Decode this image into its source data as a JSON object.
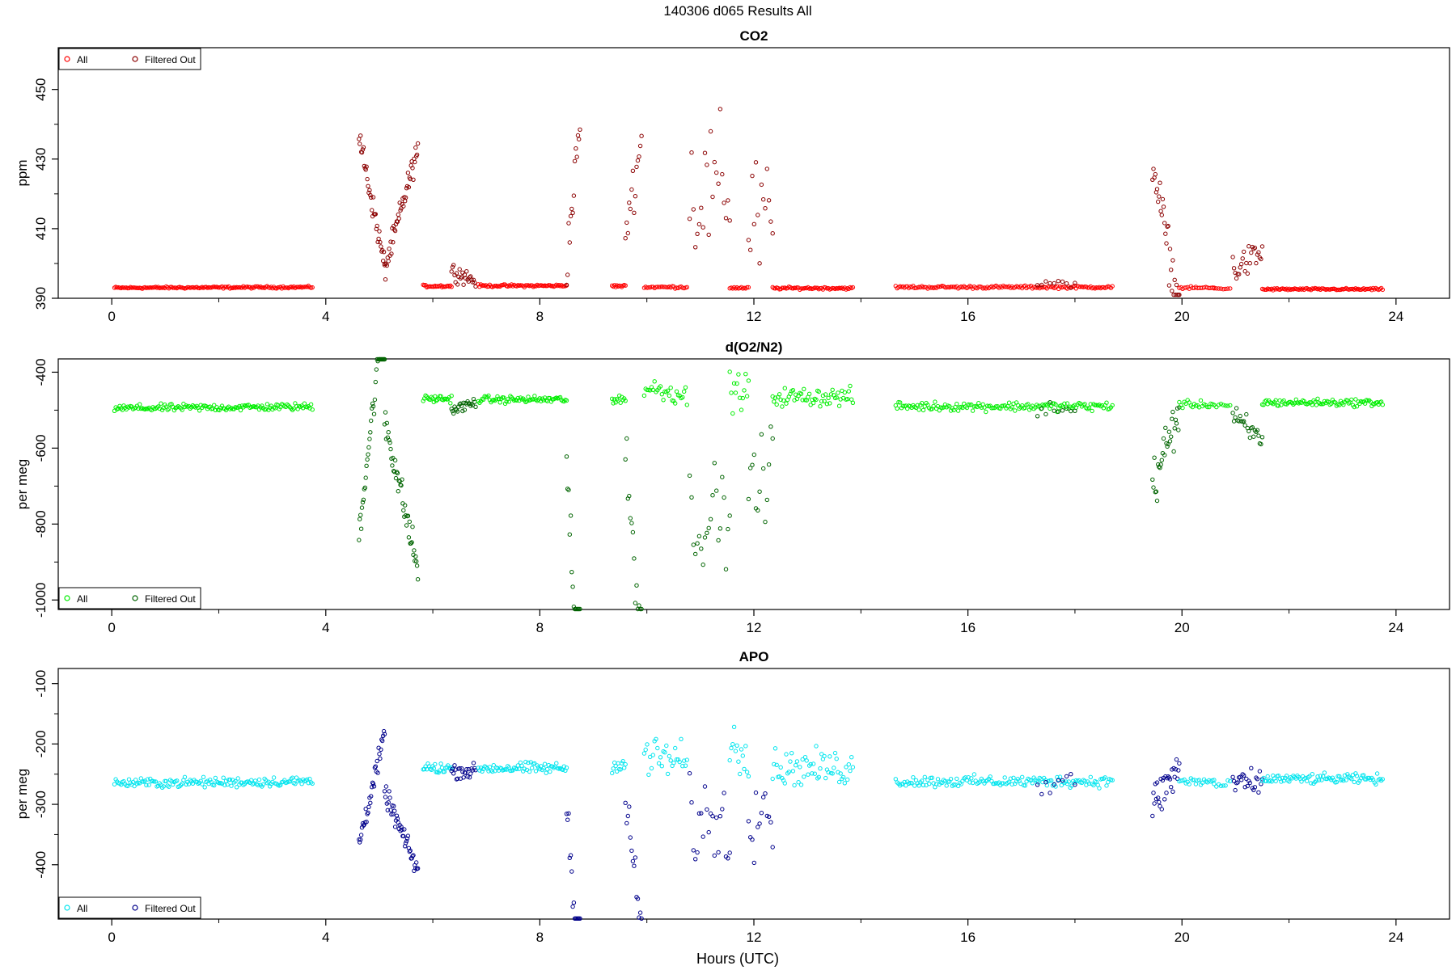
{
  "figure": {
    "title": "140306   d065   Results All",
    "xlabel": "Hours (UTC)"
  },
  "chart_data": [
    {
      "type": "scatter",
      "title": "CO2",
      "ylabel": "ppm",
      "xlim": [
        -1.0,
        25.0
      ],
      "ylim": [
        390,
        462
      ],
      "xticks": [
        0,
        4,
        8,
        12,
        16,
        20,
        24
      ],
      "yticks": [
        390,
        410,
        430,
        450
      ],
      "grid": false,
      "legend_position": "top-left",
      "series": [
        {
          "name": "All",
          "color": "#ff0000",
          "marker": "circle"
        },
        {
          "name": "Filtered Out",
          "color": "#8b0000",
          "marker": "circle"
        }
      ],
      "segments": [
        {
          "x0": 0.05,
          "x1": 3.75,
          "n": 150,
          "base": 393.0,
          "slope": 0.2,
          "noise": 0.25,
          "kind": "baseline",
          "series": 0
        },
        {
          "x0": 4.62,
          "x1": 5.1,
          "n": 35,
          "base": 437,
          "slope": -38,
          "noise": 3,
          "kind": "filtered",
          "series": 1
        },
        {
          "x0": 5.1,
          "x1": 5.72,
          "n": 45,
          "base": 398,
          "slope": 35,
          "noise": 3,
          "kind": "filtered",
          "series": 1
        },
        {
          "x0": 5.82,
          "x1": 6.35,
          "n": 25,
          "base": 393.5,
          "slope": 0,
          "noise": 0.3,
          "kind": "baseline",
          "series": 0
        },
        {
          "x0": 6.35,
          "x1": 6.8,
          "n": 25,
          "base": 398,
          "slope": -3,
          "noise": 2,
          "kind": "filtered",
          "series": 1
        },
        {
          "x0": 6.85,
          "x1": 8.5,
          "n": 70,
          "base": 393.6,
          "slope": 0,
          "noise": 0.3,
          "kind": "baseline",
          "series": 0
        },
        {
          "x0": 8.5,
          "x1": 8.75,
          "n": 14,
          "base": 400,
          "slope": 40,
          "noise": 6,
          "kind": "filtered",
          "series": 1
        },
        {
          "x0": 9.35,
          "x1": 9.6,
          "n": 12,
          "base": 393.5,
          "slope": 0,
          "noise": 0.3,
          "kind": "baseline",
          "series": 0
        },
        {
          "x0": 9.6,
          "x1": 9.9,
          "n": 14,
          "base": 410,
          "slope": 25,
          "noise": 6,
          "kind": "filtered",
          "series": 1
        },
        {
          "x0": 9.95,
          "x1": 10.75,
          "n": 30,
          "base": 393.2,
          "slope": 0,
          "noise": 0.3,
          "kind": "baseline",
          "series": 0
        },
        {
          "x0": 10.8,
          "x1": 11.55,
          "n": 22,
          "base": 420,
          "slope": 0,
          "noise": 18,
          "kind": "filtered",
          "series": 1
        },
        {
          "x0": 11.55,
          "x1": 11.9,
          "n": 14,
          "base": 393,
          "slope": 0,
          "noise": 0.3,
          "kind": "baseline",
          "series": 0
        },
        {
          "x0": 11.9,
          "x1": 12.35,
          "n": 14,
          "base": 412,
          "slope": 0,
          "noise": 16,
          "kind": "filtered",
          "series": 1
        },
        {
          "x0": 12.35,
          "x1": 13.85,
          "n": 60,
          "base": 392.9,
          "slope": 0,
          "noise": 0.3,
          "kind": "baseline",
          "series": 0
        },
        {
          "x0": 14.65,
          "x1": 18.7,
          "n": 150,
          "base": 393.2,
          "slope": 0,
          "noise": 0.35,
          "kind": "baseline",
          "series": 0
        },
        {
          "x0": 17.3,
          "x1": 18.0,
          "n": 10,
          "base": 394,
          "slope": 0,
          "noise": 1,
          "kind": "filtered",
          "series": 1
        },
        {
          "x0": 19.45,
          "x1": 19.95,
          "n": 30,
          "base": 430,
          "slope": -45,
          "noise": 6,
          "kind": "filtered",
          "series": 1
        },
        {
          "x0": 19.95,
          "x1": 20.6,
          "n": 22,
          "base": 393,
          "slope": 0,
          "noise": 0.3,
          "kind": "baseline",
          "series": 0
        },
        {
          "x0": 20.6,
          "x1": 20.9,
          "n": 8,
          "base": 392.8,
          "slope": 0,
          "noise": 0.2,
          "kind": "baseline",
          "series": 0
        },
        {
          "x0": 20.95,
          "x1": 21.5,
          "n": 25,
          "base": 398,
          "slope": 5,
          "noise": 4,
          "kind": "filtered",
          "series": 1
        },
        {
          "x0": 21.5,
          "x1": 23.75,
          "n": 90,
          "base": 392.6,
          "slope": 0,
          "noise": 0.25,
          "kind": "baseline",
          "series": 0
        }
      ]
    },
    {
      "type": "scatter",
      "title": "d(O2/N2)",
      "ylabel": "per meg",
      "xlim": [
        -1.0,
        25.0
      ],
      "ylim": [
        -1025,
        -365
      ],
      "xticks": [
        0,
        4,
        8,
        12,
        16,
        20,
        24
      ],
      "yticks": [
        -1000,
        -800,
        -600,
        -400
      ],
      "grid": false,
      "legend_position": "bottom-left",
      "series": [
        {
          "name": "All",
          "color": "#00ee00",
          "marker": "circle"
        },
        {
          "name": "Filtered Out",
          "color": "#006400",
          "marker": "circle"
        }
      ],
      "segments": [
        {
          "x0": 0.05,
          "x1": 3.75,
          "n": 150,
          "base": -495,
          "slope": 4,
          "noise": 8,
          "kind": "baseline",
          "series": 0
        },
        {
          "x0": 4.62,
          "x1": 5.1,
          "n": 35,
          "base": -820,
          "slope": 600,
          "noise": 40,
          "kind": "filtered",
          "series": 1
        },
        {
          "x0": 5.1,
          "x1": 5.72,
          "n": 45,
          "base": -520,
          "slope": -400,
          "noise": 40,
          "kind": "filtered",
          "series": 1
        },
        {
          "x0": 5.82,
          "x1": 6.35,
          "n": 25,
          "base": -470,
          "slope": 0,
          "noise": 8,
          "kind": "baseline",
          "series": 0
        },
        {
          "x0": 6.35,
          "x1": 6.8,
          "n": 25,
          "base": -500,
          "slope": 20,
          "noise": 12,
          "kind": "filtered",
          "series": 1
        },
        {
          "x0": 6.85,
          "x1": 8.5,
          "n": 70,
          "base": -472,
          "slope": 0,
          "noise": 8,
          "kind": "baseline",
          "series": 0
        },
        {
          "x0": 8.5,
          "x1": 8.75,
          "n": 14,
          "base": -650,
          "slope": -700,
          "noise": 60,
          "kind": "filtered",
          "series": 1
        },
        {
          "x0": 9.35,
          "x1": 9.6,
          "n": 12,
          "base": -470,
          "slope": 0,
          "noise": 10,
          "kind": "baseline",
          "series": 0
        },
        {
          "x0": 9.6,
          "x1": 9.9,
          "n": 14,
          "base": -620,
          "slope": -500,
          "noise": 60,
          "kind": "filtered",
          "series": 1
        },
        {
          "x0": 9.95,
          "x1": 10.75,
          "n": 30,
          "base": -440,
          "slope": -20,
          "noise": 25,
          "kind": "baseline",
          "series": 0
        },
        {
          "x0": 10.8,
          "x1": 11.55,
          "n": 22,
          "base": -780,
          "slope": 0,
          "noise": 120,
          "kind": "filtered",
          "series": 1
        },
        {
          "x0": 11.55,
          "x1": 11.9,
          "n": 14,
          "base": -450,
          "slope": 0,
          "noise": 40,
          "kind": "baseline",
          "series": 0
        },
        {
          "x0": 11.9,
          "x1": 12.35,
          "n": 14,
          "base": -700,
          "slope": 0,
          "noise": 140,
          "kind": "filtered",
          "series": 1
        },
        {
          "x0": 12.35,
          "x1": 13.85,
          "n": 60,
          "base": -465,
          "slope": 0,
          "noise": 20,
          "kind": "baseline",
          "series": 0
        },
        {
          "x0": 14.65,
          "x1": 18.7,
          "n": 150,
          "base": -490,
          "slope": 0,
          "noise": 10,
          "kind": "baseline",
          "series": 0
        },
        {
          "x0": 17.3,
          "x1": 18.0,
          "n": 10,
          "base": -500,
          "slope": 0,
          "noise": 20,
          "kind": "filtered",
          "series": 1
        },
        {
          "x0": 19.45,
          "x1": 19.95,
          "n": 30,
          "base": -700,
          "slope": 200,
          "noise": 60,
          "kind": "filtered",
          "series": 1
        },
        {
          "x0": 19.95,
          "x1": 20.6,
          "n": 22,
          "base": -485,
          "slope": 0,
          "noise": 8,
          "kind": "baseline",
          "series": 0
        },
        {
          "x0": 20.6,
          "x1": 20.9,
          "n": 8,
          "base": -487,
          "slope": 0,
          "noise": 6,
          "kind": "baseline",
          "series": 0
        },
        {
          "x0": 20.95,
          "x1": 21.5,
          "n": 25,
          "base": -520,
          "slope": -60,
          "noise": 30,
          "kind": "filtered",
          "series": 1
        },
        {
          "x0": 21.5,
          "x1": 23.75,
          "n": 90,
          "base": -480,
          "slope": 0,
          "noise": 8,
          "kind": "baseline",
          "series": 0
        }
      ]
    },
    {
      "type": "scatter",
      "title": "APO",
      "ylabel": "per meg",
      "xlim": [
        -1.0,
        25.0
      ],
      "ylim": [
        -490,
        -75
      ],
      "xticks": [
        0,
        4,
        8,
        12,
        16,
        20,
        24
      ],
      "yticks": [
        -400,
        -300,
        -200,
        -100
      ],
      "grid": false,
      "legend_position": "bottom-left",
      "series": [
        {
          "name": "All",
          "color": "#00e5ee",
          "marker": "circle"
        },
        {
          "name": "Filtered Out",
          "color": "#00008b",
          "marker": "circle"
        }
      ],
      "segments": [
        {
          "x0": 0.05,
          "x1": 3.75,
          "n": 150,
          "base": -265,
          "slope": 3,
          "noise": 7,
          "kind": "baseline",
          "series": 0
        },
        {
          "x0": 4.62,
          "x1": 5.1,
          "n": 35,
          "base": -365,
          "slope": 180,
          "noise": 15,
          "kind": "filtered",
          "series": 1
        },
        {
          "x0": 5.1,
          "x1": 5.72,
          "n": 45,
          "base": -280,
          "slope": -130,
          "noise": 14,
          "kind": "filtered",
          "series": 1
        },
        {
          "x0": 5.82,
          "x1": 6.35,
          "n": 25,
          "base": -240,
          "slope": 0,
          "noise": 8,
          "kind": "baseline",
          "series": 0
        },
        {
          "x0": 6.35,
          "x1": 6.8,
          "n": 25,
          "base": -245,
          "slope": 0,
          "noise": 10,
          "kind": "filtered",
          "series": 1
        },
        {
          "x0": 6.85,
          "x1": 8.5,
          "n": 70,
          "base": -240,
          "slope": 0,
          "noise": 8,
          "kind": "baseline",
          "series": 0
        },
        {
          "x0": 8.5,
          "x1": 8.75,
          "n": 14,
          "base": -300,
          "slope": -300,
          "noise": 25,
          "kind": "filtered",
          "series": 1
        },
        {
          "x0": 9.35,
          "x1": 9.6,
          "n": 12,
          "base": -235,
          "slope": 0,
          "noise": 10,
          "kind": "baseline",
          "series": 0
        },
        {
          "x0": 9.6,
          "x1": 9.9,
          "n": 14,
          "base": -300,
          "slope": -200,
          "noise": 40,
          "kind": "filtered",
          "series": 1
        },
        {
          "x0": 9.95,
          "x1": 10.75,
          "n": 30,
          "base": -220,
          "slope": -10,
          "noise": 30,
          "kind": "baseline",
          "series": 0
        },
        {
          "x0": 10.8,
          "x1": 11.55,
          "n": 22,
          "base": -330,
          "slope": 0,
          "noise": 60,
          "kind": "filtered",
          "series": 1
        },
        {
          "x0": 11.55,
          "x1": 11.9,
          "n": 14,
          "base": -210,
          "slope": 0,
          "noise": 40,
          "kind": "baseline",
          "series": 0
        },
        {
          "x0": 11.9,
          "x1": 12.35,
          "n": 14,
          "base": -300,
          "slope": 0,
          "noise": 70,
          "kind": "filtered",
          "series": 1
        },
        {
          "x0": 12.35,
          "x1": 13.85,
          "n": 60,
          "base": -240,
          "slope": 0,
          "noise": 25,
          "kind": "baseline",
          "series": 0
        },
        {
          "x0": 14.65,
          "x1": 18.7,
          "n": 150,
          "base": -262,
          "slope": 0,
          "noise": 8,
          "kind": "baseline",
          "series": 0
        },
        {
          "x0": 17.3,
          "x1": 18.0,
          "n": 10,
          "base": -265,
          "slope": 0,
          "noise": 25,
          "kind": "filtered",
          "series": 1
        },
        {
          "x0": 19.45,
          "x1": 19.95,
          "n": 30,
          "base": -300,
          "slope": 60,
          "noise": 30,
          "kind": "filtered",
          "series": 1
        },
        {
          "x0": 19.95,
          "x1": 20.6,
          "n": 22,
          "base": -262,
          "slope": 0,
          "noise": 7,
          "kind": "baseline",
          "series": 0
        },
        {
          "x0": 20.6,
          "x1": 20.9,
          "n": 8,
          "base": -268,
          "slope": 0,
          "noise": 6,
          "kind": "baseline",
          "series": 0
        },
        {
          "x0": 20.95,
          "x1": 21.5,
          "n": 25,
          "base": -265,
          "slope": 0,
          "noise": 18,
          "kind": "filtered",
          "series": 1
        },
        {
          "x0": 21.5,
          "x1": 23.75,
          "n": 90,
          "base": -258,
          "slope": 0,
          "noise": 7,
          "kind": "baseline",
          "series": 0
        }
      ]
    }
  ]
}
